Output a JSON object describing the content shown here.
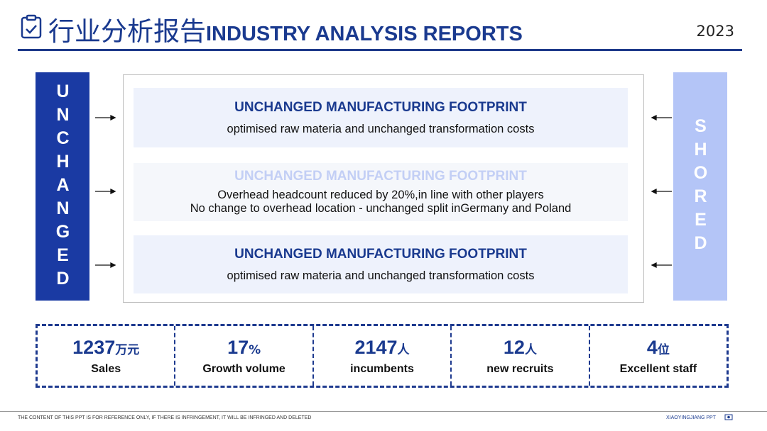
{
  "header": {
    "title_cn": "行业分析报告",
    "title_en": "INDUSTRY ANALYSIS REPORTS",
    "year": "2023"
  },
  "left_label": "UNCHANGED",
  "right_label": "SHORED",
  "cards": [
    {
      "title": "UNCHANGED  MANUFACTURING FOOTPRINT",
      "lines": [
        "optimised raw materia  and unchanged transformation costs"
      ]
    },
    {
      "title": "UNCHANGED  MANUFACTURING FOOTPRINT",
      "lines": [
        "Overhead headcount reduced by 20%,in line with other players",
        "No change to overhead location - unchanged split inGermany and Poland"
      ]
    },
    {
      "title": "UNCHANGED  MANUFACTURING FOOTPRINT",
      "lines": [
        "optimised raw materia  and unchanged transformation costs"
      ]
    }
  ],
  "stats": [
    {
      "value": 1237,
      "unit": "万元",
      "label": "Sales"
    },
    {
      "value": 17,
      "unit": "%",
      "label": "Growth volume"
    },
    {
      "value": 2147,
      "unit": "人",
      "label": "incumbents"
    },
    {
      "value": 12,
      "unit": "人",
      "label": "new recruits"
    },
    {
      "value": 4,
      "unit": "位",
      "label": "Excellent staff"
    }
  ],
  "footer": {
    "disclaimer": "THE CONTENT OF THIS PPT IS FOR REFERENCE ONLY, IF THERE IS INFRINGEMENT, IT WILL BE INFRINGED AND DELETED",
    "brand": "XIAOYINGJIANG PPT"
  }
}
